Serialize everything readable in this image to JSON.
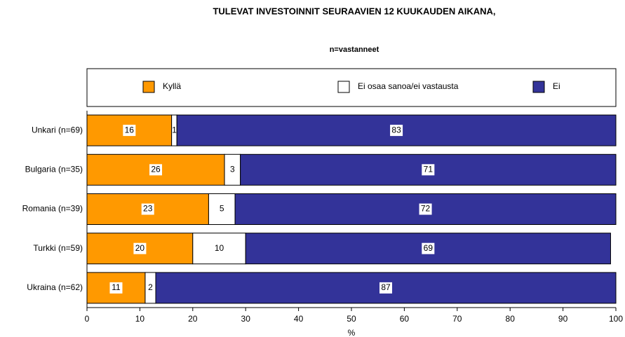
{
  "chart_data": {
    "type": "bar",
    "orientation": "horizontal",
    "stacked": true,
    "title": "TULEVAT INVESTOINNIT SEURAAVIEN 12 KUUKAUDEN AIKANA,",
    "subtitle": "n=vastanneet",
    "x_label": "%",
    "categories": [
      "Unkari (n=69)",
      "Bulgaria (n=35)",
      "Romania (n=39)",
      "Turkki (n=59)",
      "Ukraina (n=62)"
    ],
    "series": [
      {
        "name": "Kyllä",
        "color": "#ff9900",
        "values": [
          16,
          26,
          23,
          20,
          11
        ]
      },
      {
        "name": "Ei osaa sanoa/ei vastausta",
        "color": "#ffffff",
        "values": [
          1,
          3,
          5,
          10,
          2
        ]
      },
      {
        "name": "Ei",
        "color": "#333399",
        "values": [
          83,
          71,
          72,
          69,
          87
        ]
      }
    ],
    "xlim": [
      0,
      100
    ],
    "xticks": [
      0,
      10,
      20,
      30,
      40,
      50,
      60,
      70,
      80,
      90,
      100
    ],
    "legend": "top"
  }
}
